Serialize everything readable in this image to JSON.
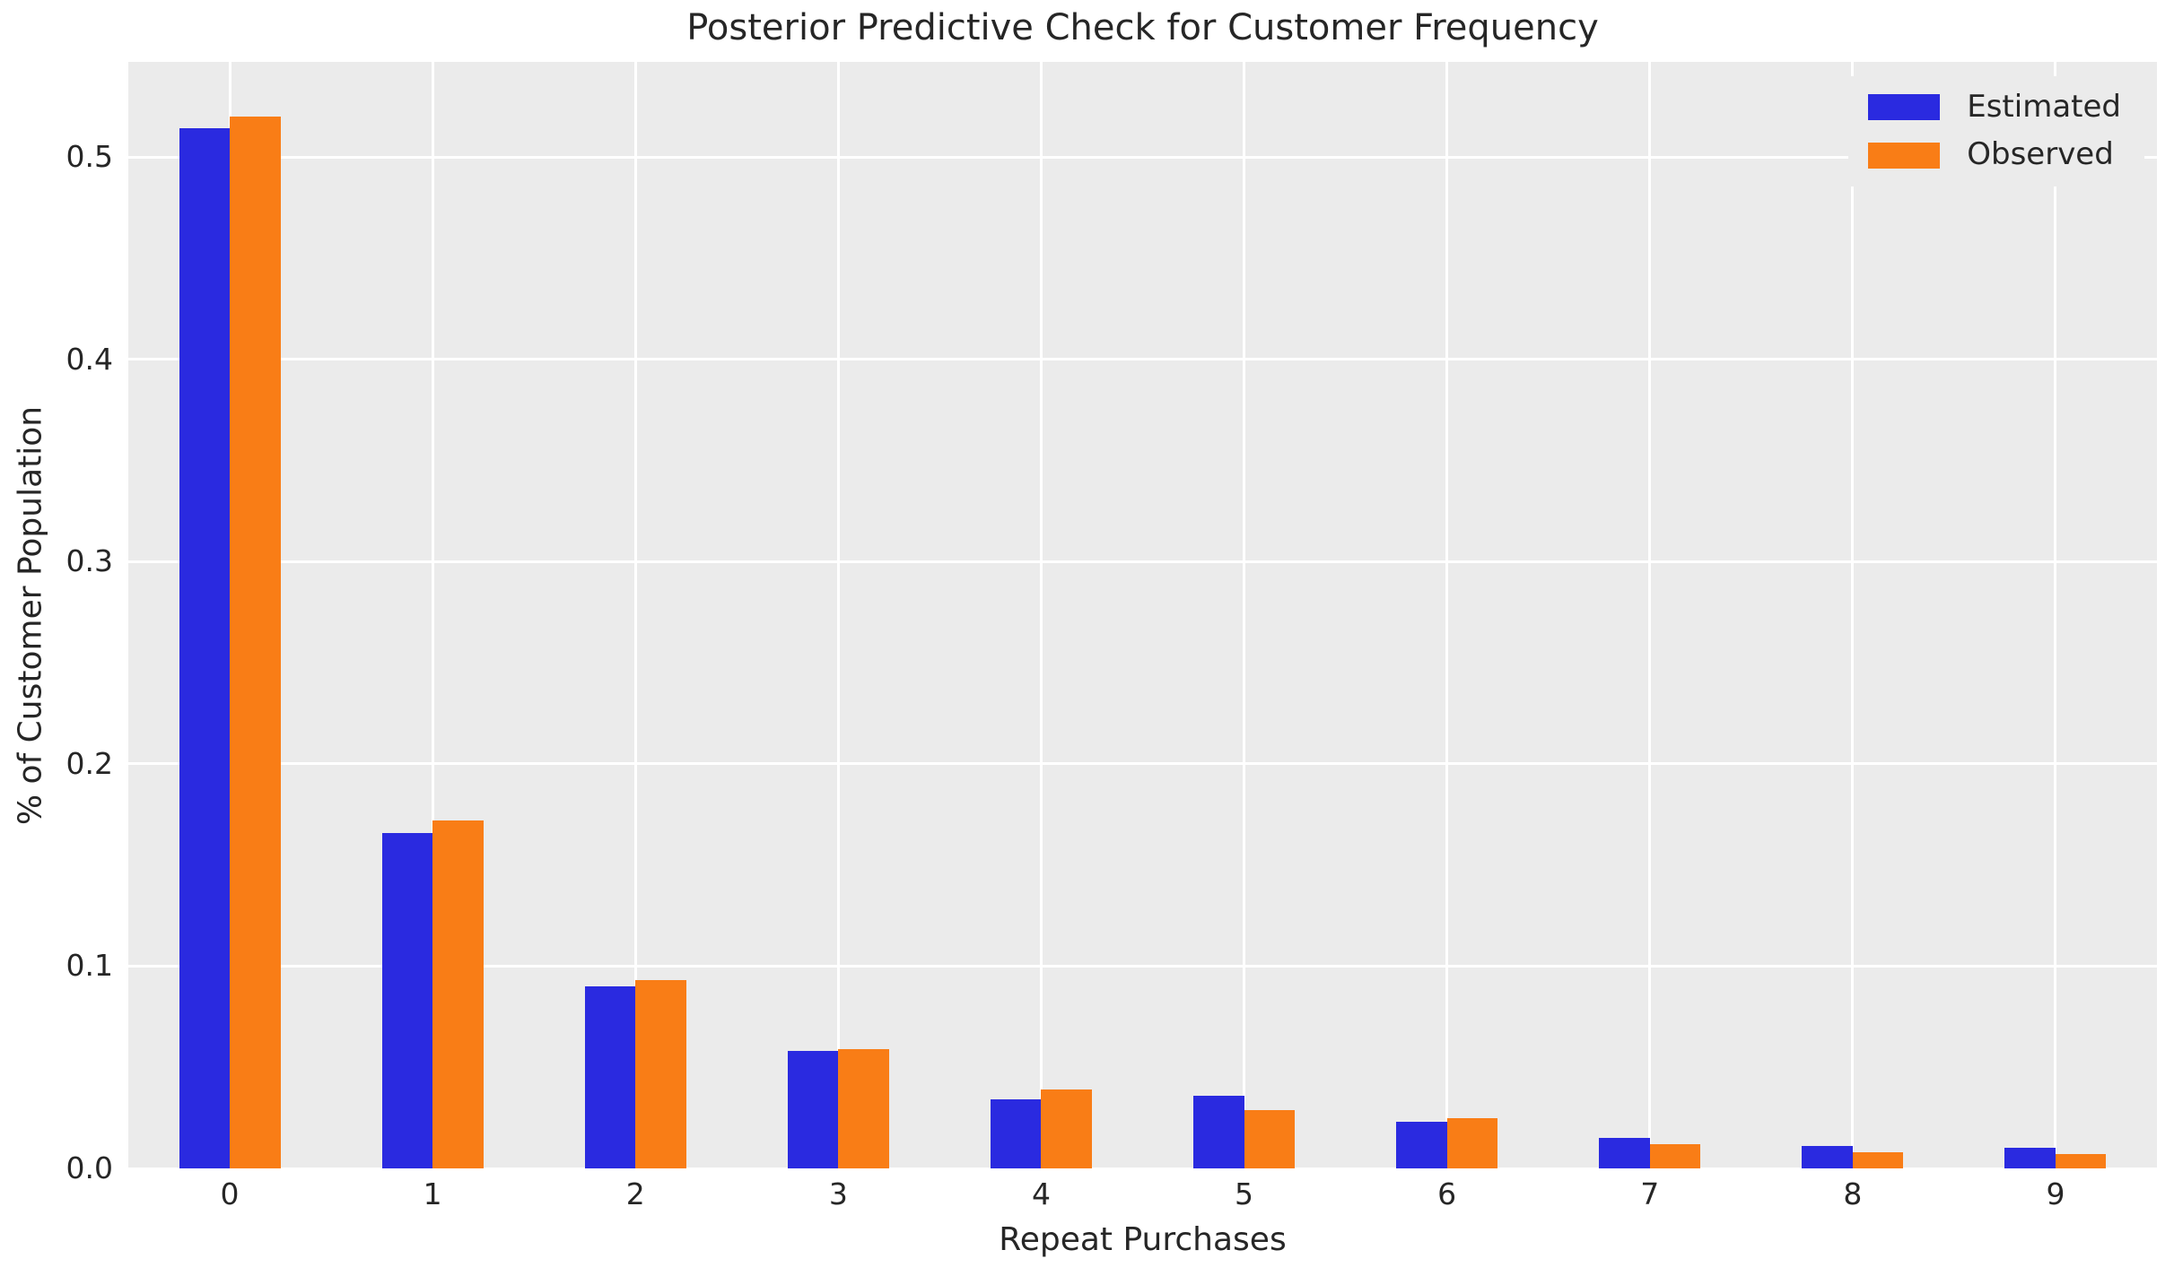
{
  "chart_data": {
    "type": "bar",
    "title": "Posterior Predictive Check for Customer Frequency",
    "xlabel": "Repeat Purchases",
    "ylabel": "% of Customer Population",
    "categories": [
      "0",
      "1",
      "2",
      "3",
      "4",
      "5",
      "6",
      "7",
      "8",
      "9"
    ],
    "series": [
      {
        "name": "Estimated",
        "color": "#2a2ae0",
        "values": [
          0.514,
          0.166,
          0.09,
          0.058,
          0.034,
          0.036,
          0.023,
          0.015,
          0.011,
          0.01
        ]
      },
      {
        "name": "Observed",
        "color": "#f97d16",
        "values": [
          0.52,
          0.172,
          0.093,
          0.059,
          0.039,
          0.029,
          0.025,
          0.012,
          0.008,
          0.007
        ]
      }
    ],
    "yticks": [
      0.0,
      0.1,
      0.2,
      0.3,
      0.4,
      0.5
    ],
    "ytick_labels": [
      "0.0",
      "0.1",
      "0.2",
      "0.3",
      "0.4",
      "0.5"
    ],
    "ylim": [
      0,
      0.547
    ],
    "grid": true,
    "legend_position": "upper right",
    "plot_bg": "#ebebeb",
    "grid_color": "#ffffff",
    "text_color": "#262626",
    "figure_bg": "#ffffff"
  }
}
